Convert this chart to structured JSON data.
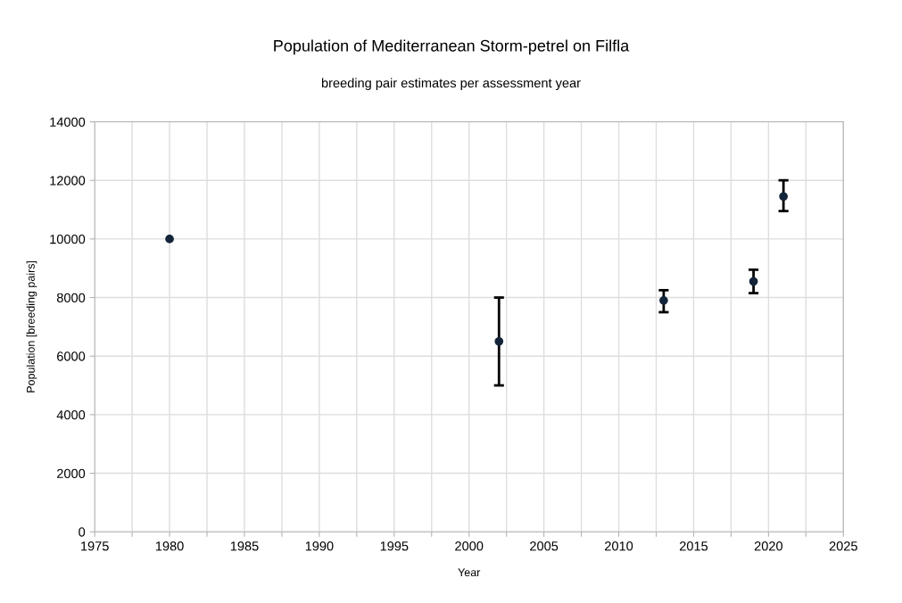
{
  "chart_data": {
    "type": "scatter",
    "title": "Population of Mediterranean Storm-petrel on Filfla",
    "subtitle": "breeding pair estimates per assessment year",
    "xlabel": "Year",
    "ylabel": "Population [breeding pairs]",
    "x": [
      1980,
      2002,
      2013,
      2019,
      2021
    ],
    "values": [
      10000,
      6500,
      7900,
      8550,
      11450
    ],
    "errors": [
      null,
      [
        5000,
        8000
      ],
      [
        7500,
        8250
      ],
      [
        8150,
        8950
      ],
      [
        10950,
        12000
      ]
    ],
    "color": "#14253a",
    "marker": "circle",
    "xlim": [
      1975,
      2025
    ],
    "xticks": [
      1975,
      {
        "value": 1977.5,
        "label": null
      },
      1980,
      {
        "value": 1982.5,
        "label": null
      },
      1985,
      {
        "value": 1987.5,
        "label": null
      },
      1990,
      {
        "value": 1992.5,
        "label": null
      },
      1995,
      {
        "value": 1997.5,
        "label": null
      },
      2000,
      {
        "value": 2002.5,
        "label": null
      },
      2005,
      {
        "value": 2007.5,
        "label": null
      },
      2010,
      {
        "value": 2012.5,
        "label": null
      },
      2015,
      {
        "value": 2017.5,
        "label": null
      },
      2020,
      {
        "value": 2022.5,
        "label": null
      },
      2025
    ],
    "ylim": [
      0,
      14000
    ],
    "yticks": [
      0,
      2000,
      4000,
      6000,
      8000,
      10000,
      12000,
      14000
    ],
    "grid": true,
    "legend": false
  }
}
